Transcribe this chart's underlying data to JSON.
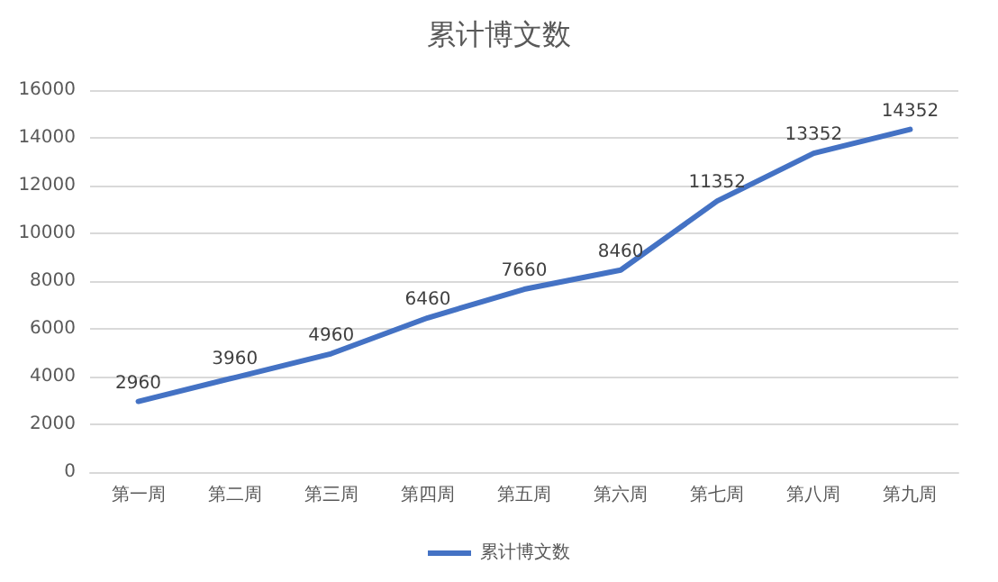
{
  "chart_data": {
    "type": "line",
    "title": "累计博文数",
    "categories": [
      "第一周",
      "第二周",
      "第三周",
      "第四周",
      "第五周",
      "第六周",
      "第七周",
      "第八周",
      "第九周"
    ],
    "series": [
      {
        "name": "累计博文数",
        "color": "#4472c4",
        "values": [
          2960,
          3960,
          4960,
          6460,
          7660,
          8460,
          11352,
          13352,
          14352
        ]
      }
    ],
    "ylim": [
      0,
      16000
    ],
    "yticks": [
      0,
      2000,
      4000,
      6000,
      8000,
      10000,
      12000,
      14000,
      16000
    ],
    "grid": "y",
    "legend": "bottom",
    "marker": "none",
    "data_labels": true
  }
}
